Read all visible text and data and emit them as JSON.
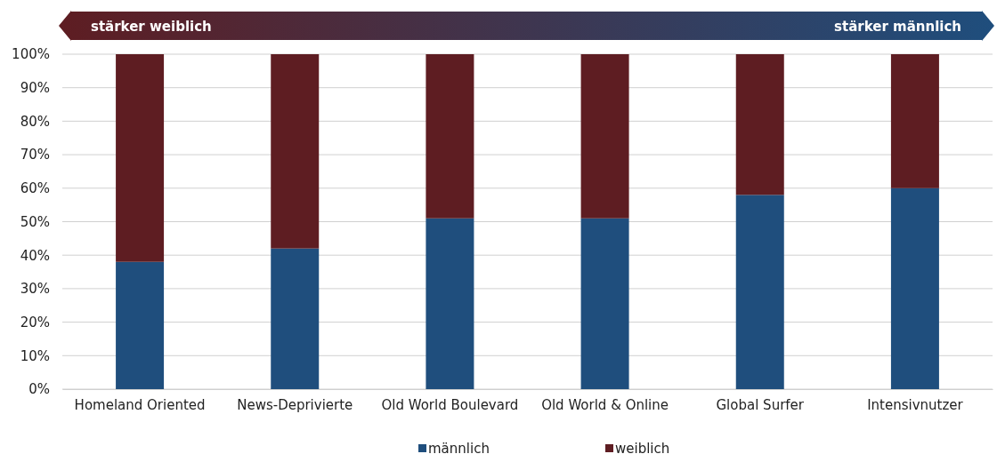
{
  "chart_data": {
    "type": "bar",
    "stacked": true,
    "categories": [
      "Homeland Oriented",
      "News-Deprivierte",
      "Old World Boulevard",
      "Old World & Online",
      "Global Surfer",
      "Intensivnutzer"
    ],
    "series": [
      {
        "name": "männlich",
        "color": "#1f4e7d",
        "values": [
          38,
          42,
          51,
          51,
          58,
          60
        ]
      },
      {
        "name": "weiblich",
        "color": "#5e1d22",
        "values": [
          62,
          58,
          49,
          49,
          42,
          40
        ]
      }
    ],
    "ylim": [
      0,
      100
    ],
    "yticks": [
      {
        "value": 0,
        "label": "0%"
      },
      {
        "value": 10,
        "label": "10%"
      },
      {
        "value": 20,
        "label": "20%"
      },
      {
        "value": 30,
        "label": "30%"
      },
      {
        "value": 40,
        "label": "40%"
      },
      {
        "value": 50,
        "label": "50%"
      },
      {
        "value": 60,
        "label": "60%"
      },
      {
        "value": 70,
        "label": "70%"
      },
      {
        "value": 80,
        "label": "80%"
      },
      {
        "value": 90,
        "label": "90%"
      },
      {
        "value": 100,
        "label": "100%"
      }
    ],
    "grid": "y",
    "legend": "bottom",
    "annotations": [
      "stärker weiblich",
      "stärker männlich"
    ]
  }
}
